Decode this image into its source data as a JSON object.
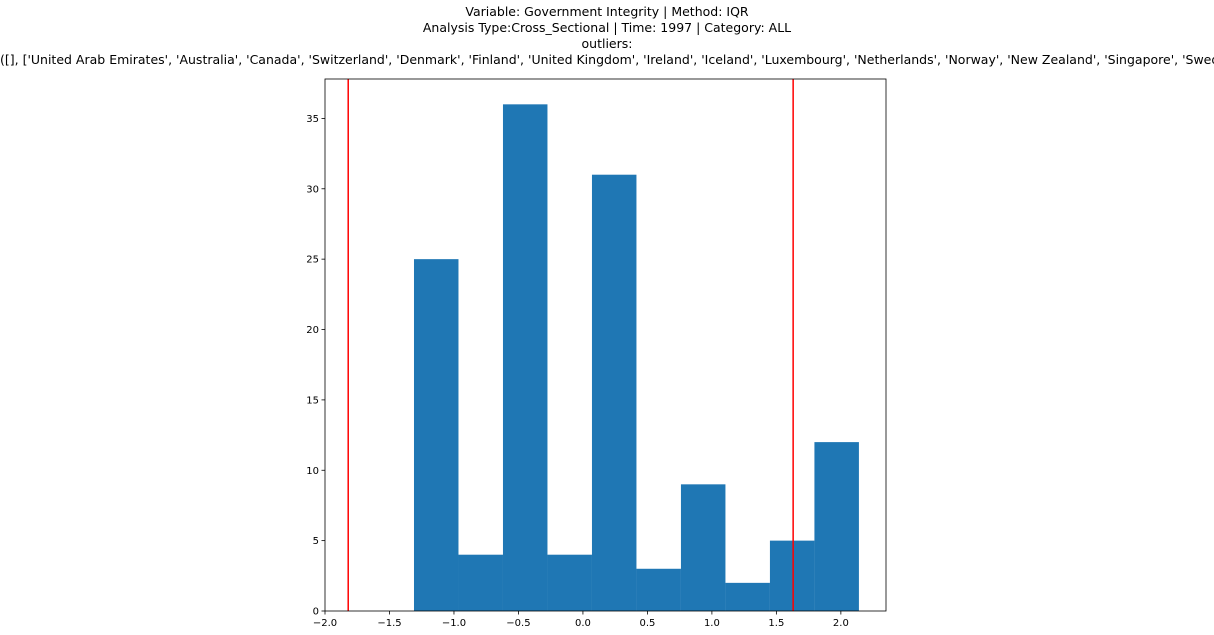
{
  "chart_data": {
    "type": "histogram",
    "title_lines": [
      "Variable: Government Integrity | Method: IQR",
      "Analysis Type:Cross_Sectional | Time: 1997 | Category: ALL",
      "outliers:",
      "([], ['United Arab Emirates', 'Australia', 'Canada', 'Switzerland', 'Denmark', 'Finland', 'United Kingdom', 'Ireland', 'Iceland', 'Luxembourg', 'Netherlands', 'Norway', 'New Zealand', 'Singapore', 'Sweden'])"
    ],
    "xlabel": "",
    "ylabel": "",
    "bin_edges": [
      -1.31,
      -0.965,
      -0.62,
      -0.275,
      0.07,
      0.415,
      0.76,
      1.105,
      1.45,
      1.795,
      2.14
    ],
    "counts": [
      25,
      4,
      36,
      4,
      31,
      3,
      9,
      2,
      5,
      12
    ],
    "bar_color": "#1f77b4",
    "vlines": [
      {
        "x": -1.82,
        "color": "#ff0000"
      },
      {
        "x": 1.63,
        "color": "#ff0000"
      }
    ],
    "xlim": [
      -2.0,
      2.35
    ],
    "ylim": [
      0,
      37.8
    ],
    "xticks": [
      -2.0,
      -1.5,
      -1.0,
      -0.5,
      0.0,
      0.5,
      1.0,
      1.5,
      2.0
    ],
    "xtick_labels": [
      "−2.0",
      "−1.5",
      "−1.0",
      "−0.5",
      "0.0",
      "0.5",
      "1.0",
      "1.5",
      "2.0"
    ],
    "yticks": [
      0,
      5,
      10,
      15,
      20,
      25,
      30,
      35
    ],
    "ytick_labels": [
      "0",
      "5",
      "10",
      "15",
      "20",
      "25",
      "30",
      "35"
    ],
    "grid": false,
    "legend": "none"
  }
}
